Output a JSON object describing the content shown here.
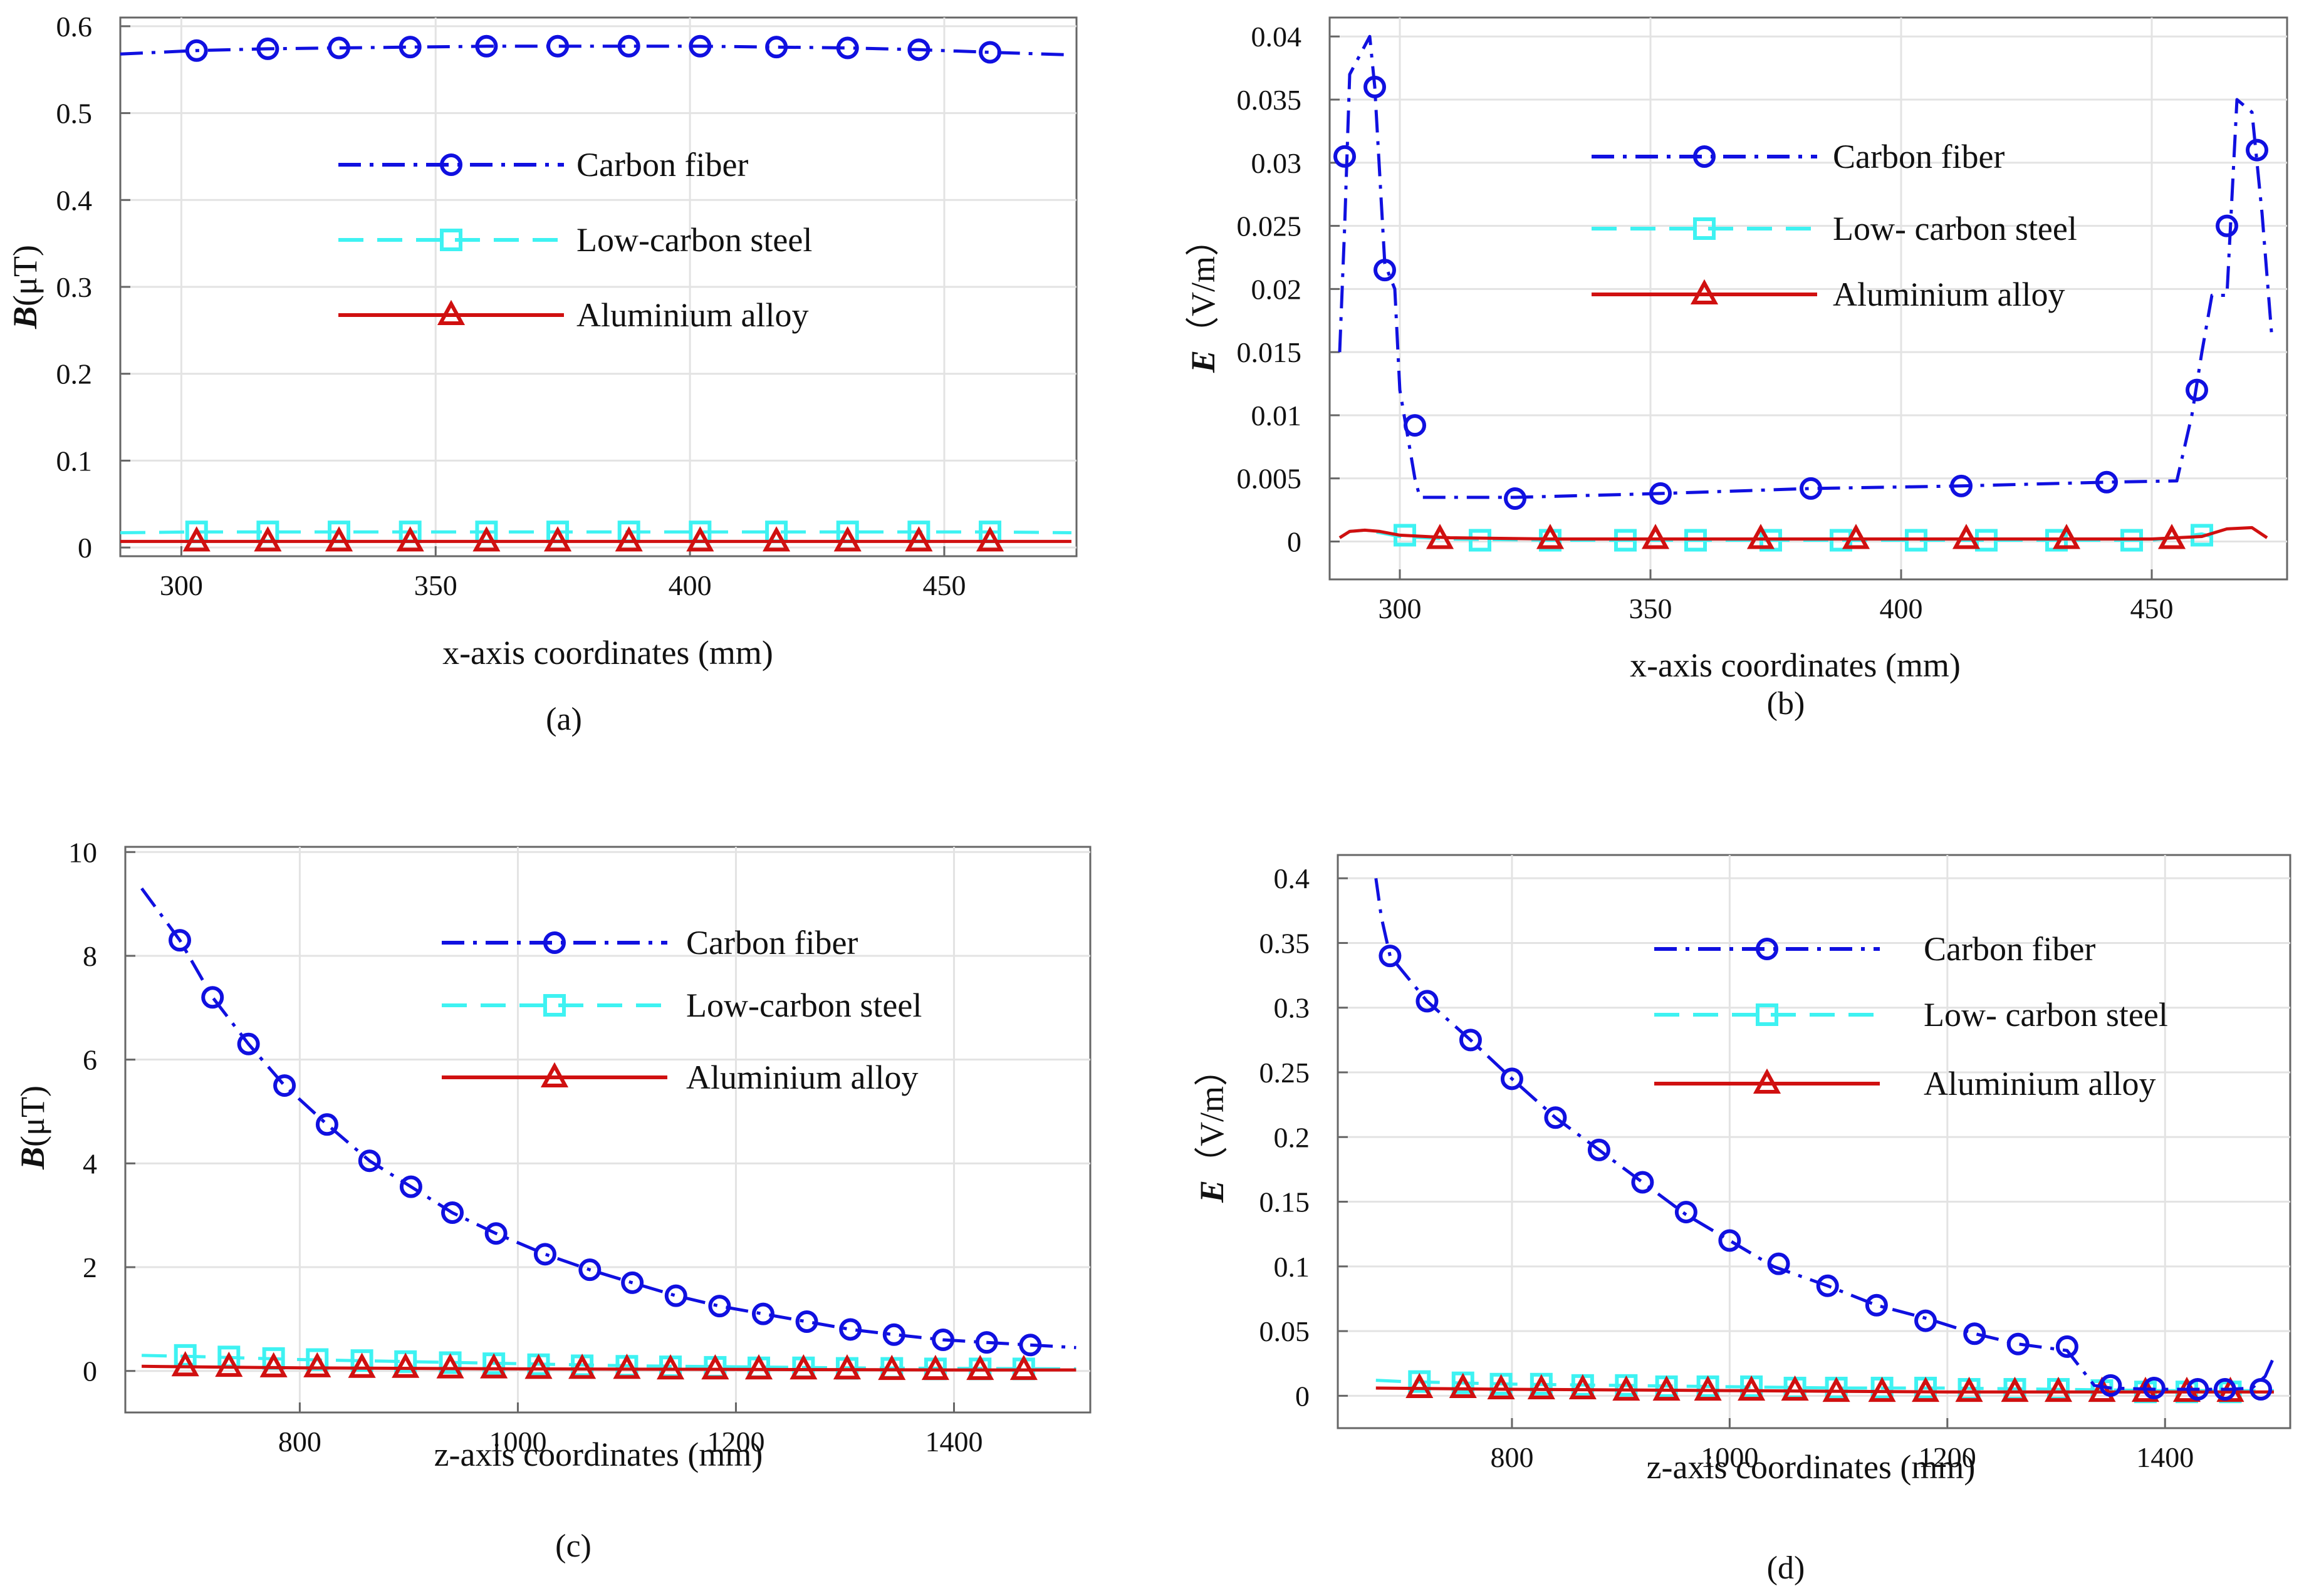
{
  "series_styles": {
    "Carbon fiber": {
      "color": "#1010e0",
      "dash": "36 14 6 14",
      "marker": "circle"
    },
    "Low-carbon steel": {
      "color": "#3ef2f2",
      "dash": "40 22",
      "marker": "square"
    },
    "Aluminium alloy": {
      "color": "#d01010",
      "dash": "",
      "marker": "triangle"
    }
  },
  "chart_data": [
    {
      "id": "a",
      "type": "line",
      "caption": "(a)",
      "xlabel": "x-axis coordinates (mm)",
      "ylabel_main": "B",
      "ylabel_unit": "(μT)",
      "xlim": [
        288,
        476
      ],
      "ylim": [
        -0.01,
        0.61
      ],
      "xticks": [
        300,
        350,
        400,
        450
      ],
      "yticks": [
        0,
        0.1,
        0.2,
        0.3,
        0.4,
        0.5,
        0.6
      ],
      "xtick_labels": [
        "300",
        "350",
        "400",
        "450"
      ],
      "ytick_labels": [
        "0",
        "0.1",
        "0.2",
        "0.3",
        "0.4",
        "0.5",
        "0.6"
      ],
      "legend": [
        "Carbon fiber",
        "Low-carbon steel",
        "Aluminium alloy"
      ],
      "series": [
        {
          "name": "Carbon fiber",
          "x": [
            288,
            303,
            317,
            331,
            345,
            360,
            374,
            388,
            402,
            417,
            431,
            445,
            459,
            475
          ],
          "y": [
            0.568,
            0.572,
            0.574,
            0.575,
            0.576,
            0.577,
            0.577,
            0.577,
            0.577,
            0.576,
            0.575,
            0.573,
            0.57,
            0.567
          ],
          "marker_x": [
            303,
            317,
            331,
            345,
            360,
            374,
            388,
            402,
            417,
            431,
            445,
            459
          ]
        },
        {
          "name": "Low-carbon steel",
          "x": [
            288,
            303,
            317,
            331,
            345,
            360,
            374,
            388,
            402,
            417,
            431,
            445,
            459,
            475
          ],
          "y": [
            0.017,
            0.018,
            0.018,
            0.018,
            0.018,
            0.018,
            0.018,
            0.018,
            0.018,
            0.018,
            0.018,
            0.018,
            0.018,
            0.017
          ],
          "marker_x": [
            303,
            317,
            331,
            345,
            360,
            374,
            388,
            402,
            417,
            431,
            445,
            459
          ]
        },
        {
          "name": "Aluminium alloy",
          "x": [
            288,
            303,
            317,
            331,
            345,
            360,
            374,
            388,
            402,
            417,
            431,
            445,
            459,
            475
          ],
          "y": [
            0.007,
            0.007,
            0.007,
            0.007,
            0.007,
            0.007,
            0.007,
            0.007,
            0.007,
            0.007,
            0.007,
            0.007,
            0.007,
            0.007
          ],
          "marker_x": [
            303,
            317,
            331,
            345,
            360,
            374,
            388,
            402,
            417,
            431,
            445,
            459
          ]
        }
      ]
    },
    {
      "id": "b",
      "type": "line",
      "caption": "(b)",
      "xlabel": "x-axis coordinates (mm)",
      "ylabel_main": "E",
      "ylabel_unit": "（V/m）",
      "xlim": [
        286,
        477
      ],
      "ylim": [
        -0.003,
        0.0415
      ],
      "xticks": [
        300,
        350,
        400,
        450
      ],
      "yticks": [
        0,
        0.005,
        0.01,
        0.015,
        0.02,
        0.025,
        0.03,
        0.035,
        0.04
      ],
      "xtick_labels": [
        "300",
        "350",
        "400",
        "450"
      ],
      "ytick_labels": [
        "0",
        "0.005",
        "0.01",
        "0.015",
        "0.02",
        "0.025",
        "0.03",
        "0.035",
        "0.04"
      ],
      "legend": [
        "Carbon fiber",
        "Low- carbon steel",
        "Aluminium alloy"
      ],
      "series": [
        {
          "name": "Carbon fiber",
          "x": [
            288,
            289,
            290,
            294,
            295,
            297,
            299,
            300,
            303,
            304,
            323,
            352,
            382,
            412,
            441,
            455,
            458,
            460,
            462,
            465,
            467,
            470,
            472,
            474
          ],
          "y": [
            0.015,
            0.025,
            0.037,
            0.04,
            0.036,
            0.022,
            0.02,
            0.012,
            0.005,
            0.0035,
            0.0035,
            0.0038,
            0.0042,
            0.0044,
            0.0047,
            0.0048,
            0.01,
            0.015,
            0.0195,
            0.0195,
            0.035,
            0.034,
            0.026,
            0.016
          ],
          "marker_x": [
            289,
            295,
            297,
            303,
            323,
            352,
            382,
            412,
            441,
            459,
            465,
            471
          ],
          "marker_y": [
            0.0305,
            0.036,
            0.0215,
            0.0092,
            0.0034,
            0.0038,
            0.0042,
            0.0044,
            0.0047,
            0.012,
            0.025,
            0.031
          ]
        },
        {
          "name": "Low- carbon steel",
          "x": [
            288,
            290,
            293,
            296,
            300,
            310,
            330,
            360,
            390,
            420,
            450,
            458,
            460,
            462
          ],
          "y": [
            0.0003,
            0.0008,
            0.0009,
            0.0007,
            0.0004,
            0.0002,
            0.0001,
            0.0001,
            0.0001,
            0.0001,
            0.0001,
            0.0005,
            0.0006,
            0.0004
          ],
          "marker_x": [
            301,
            316,
            330,
            345,
            359,
            374,
            388,
            403,
            417,
            431,
            446,
            460
          ],
          "marker_y": [
            0.0005,
            0.0001,
            0.0001,
            0.0001,
            0.0001,
            0.0001,
            0.0001,
            0.0001,
            0.0001,
            0.0001,
            0.0001,
            0.0005
          ]
        },
        {
          "name": "Aluminium alloy",
          "x": [
            288,
            290,
            293,
            296,
            300,
            310,
            330,
            360,
            390,
            420,
            450,
            460,
            465,
            470,
            473
          ],
          "y": [
            0.0003,
            0.0008,
            0.0009,
            0.0008,
            0.0005,
            0.0003,
            0.0002,
            0.0002,
            0.0002,
            0.0002,
            0.0002,
            0.0004,
            0.001,
            0.0011,
            0.0003
          ],
          "marker_x": [
            308,
            330,
            351,
            372,
            391,
            413,
            433,
            454
          ],
          "marker_y": [
            0.0002,
            0.0002,
            0.0002,
            0.0002,
            0.0002,
            0.0002,
            0.0002,
            0.0002
          ]
        }
      ]
    },
    {
      "id": "c",
      "type": "line",
      "caption": "(c)",
      "xlabel": "z-axis coordinates (mm)",
      "ylabel_main": "B",
      "ylabel_unit": "(μT)",
      "xlim": [
        640,
        1525
      ],
      "ylim": [
        -0.8,
        10.1
      ],
      "xticks": [
        800,
        1000,
        1200,
        1400
      ],
      "yticks": [
        0,
        2,
        4,
        6,
        8,
        10
      ],
      "xtick_labels": [
        "800",
        "1000",
        "1200",
        "1400"
      ],
      "ytick_labels": [
        "0",
        "2",
        "4",
        "6",
        "8",
        "10"
      ],
      "legend": [
        "Carbon fiber",
        "Low-carbon steel",
        "Aluminium alloy"
      ],
      "series": [
        {
          "name": "Carbon fiber",
          "x": [
            655,
            690,
            720,
            753,
            786,
            825,
            864,
            902,
            940,
            980,
            1025,
            1066,
            1105,
            1145,
            1185,
            1225,
            1265,
            1305,
            1345,
            1390,
            1430,
            1470,
            1512
          ],
          "y": [
            9.3,
            8.3,
            7.2,
            6.3,
            5.5,
            4.75,
            4.05,
            3.55,
            3.05,
            2.65,
            2.25,
            1.95,
            1.7,
            1.45,
            1.25,
            1.1,
            0.95,
            0.8,
            0.7,
            0.6,
            0.55,
            0.5,
            0.45
          ],
          "marker_x": [
            690,
            720,
            753,
            786,
            825,
            864,
            902,
            940,
            980,
            1025,
            1066,
            1105,
            1145,
            1185,
            1225,
            1265,
            1305,
            1345,
            1390,
            1430,
            1470
          ]
        },
        {
          "name": "Low-carbon steel",
          "x": [
            655,
            700,
            750,
            800,
            850,
            900,
            1000,
            1100,
            1200,
            1300,
            1400,
            1512
          ],
          "y": [
            0.3,
            0.28,
            0.25,
            0.22,
            0.2,
            0.18,
            0.14,
            0.1,
            0.08,
            0.06,
            0.05,
            0.04
          ],
          "marker_x": [
            695,
            735,
            776,
            816,
            857,
            897,
            938,
            978,
            1019,
            1059,
            1100,
            1140,
            1181,
            1221,
            1262,
            1302,
            1343,
            1383,
            1424,
            1464
          ],
          "marker_y": [
            0.3,
            0.27,
            0.24,
            0.22,
            0.2,
            0.18,
            0.16,
            0.14,
            0.12,
            0.1,
            0.09,
            0.08,
            0.07,
            0.06,
            0.06,
            0.05,
            0.05,
            0.04,
            0.04,
            0.04
          ]
        },
        {
          "name": "Aluminium alloy",
          "x": [
            655,
            800,
            1000,
            1200,
            1400,
            1512
          ],
          "y": [
            0.09,
            0.06,
            0.04,
            0.03,
            0.02,
            0.02
          ],
          "marker_x": [
            695,
            735,
            776,
            816,
            857,
            897,
            938,
            978,
            1019,
            1059,
            1100,
            1140,
            1181,
            1221,
            1262,
            1302,
            1343,
            1383,
            1424,
            1464
          ],
          "marker_y": [
            0.09,
            0.08,
            0.07,
            0.07,
            0.06,
            0.06,
            0.05,
            0.05,
            0.04,
            0.04,
            0.04,
            0.03,
            0.03,
            0.03,
            0.03,
            0.03,
            0.02,
            0.02,
            0.02,
            0.02
          ]
        }
      ]
    },
    {
      "id": "d",
      "type": "line",
      "caption": "(d)",
      "xlabel": "z-axis coordinates (mm)",
      "ylabel_main": "E",
      "ylabel_unit": "（V/m）",
      "xlim": [
        640,
        1515
      ],
      "ylim": [
        -0.025,
        0.418
      ],
      "xticks": [
        800,
        1000,
        1200,
        1400
      ],
      "yticks": [
        0,
        0.05,
        0.1,
        0.15,
        0.2,
        0.25,
        0.3,
        0.35,
        0.4
      ],
      "xtick_labels": [
        "800",
        "1000",
        "1200",
        "1400"
      ],
      "ytick_labels": [
        "0",
        "0.05",
        "0.1",
        "0.15",
        "0.2",
        "0.25",
        "0.3",
        "0.35",
        "0.4"
      ],
      "legend": [
        "Carbon fiber",
        "Low- carbon steel",
        "Aluminium alloy"
      ],
      "series": [
        {
          "name": "Carbon fiber",
          "x": [
            675,
            680,
            688,
            722,
            762,
            800,
            840,
            880,
            920,
            960,
            1000,
            1040,
            1090,
            1135,
            1180,
            1225,
            1265,
            1310,
            1335,
            1350,
            1390,
            1430,
            1460,
            1480,
            1492,
            1500
          ],
          "y": [
            0.4,
            0.37,
            0.34,
            0.305,
            0.275,
            0.245,
            0.215,
            0.19,
            0.165,
            0.14,
            0.12,
            0.1,
            0.085,
            0.07,
            0.06,
            0.048,
            0.04,
            0.035,
            0.008,
            0.006,
            0.005,
            0.005,
            0.005,
            0.006,
            0.015,
            0.03
          ],
          "marker_x": [
            688,
            722,
            762,
            800,
            840,
            880,
            920,
            960,
            1000,
            1045,
            1090,
            1135,
            1180,
            1225,
            1265,
            1310,
            1350,
            1390,
            1430,
            1455,
            1488
          ],
          "marker_y": [
            0.34,
            0.305,
            0.275,
            0.245,
            0.215,
            0.19,
            0.165,
            0.142,
            0.12,
            0.102,
            0.085,
            0.07,
            0.058,
            0.048,
            0.04,
            0.038,
            0.008,
            0.006,
            0.005,
            0.005,
            0.005
          ]
        },
        {
          "name": "Low- carbon steel",
          "x": [
            675,
            700,
            750,
            800,
            900,
            1000,
            1100,
            1200,
            1300,
            1400,
            1500
          ],
          "y": [
            0.012,
            0.011,
            0.01,
            0.009,
            0.008,
            0.007,
            0.006,
            0.006,
            0.005,
            0.004,
            0.004
          ],
          "marker_x": [
            715,
            755,
            790,
            827,
            865,
            905,
            942,
            980,
            1020,
            1060,
            1098,
            1140,
            1180,
            1220,
            1262,
            1302,
            1342,
            1382,
            1420,
            1460
          ],
          "marker_y": [
            0.011,
            0.01,
            0.009,
            0.009,
            0.008,
            0.008,
            0.007,
            0.007,
            0.007,
            0.006,
            0.006,
            0.006,
            0.006,
            0.005,
            0.005,
            0.005,
            0.004,
            0.003,
            0.003,
            0.003
          ]
        },
        {
          "name": "Aluminium alloy",
          "x": [
            675,
            800,
            1000,
            1200,
            1400,
            1500
          ],
          "y": [
            0.006,
            0.005,
            0.004,
            0.003,
            0.003,
            0.003
          ],
          "marker_x": [
            715,
            755,
            790,
            827,
            865,
            905,
            942,
            980,
            1020,
            1060,
            1098,
            1140,
            1180,
            1220,
            1262,
            1302,
            1342,
            1382,
            1420,
            1460
          ],
          "marker_y": [
            0.006,
            0.006,
            0.005,
            0.005,
            0.005,
            0.004,
            0.004,
            0.004,
            0.004,
            0.004,
            0.003,
            0.003,
            0.003,
            0.003,
            0.003,
            0.003,
            0.003,
            0.003,
            0.003,
            0.003
          ]
        }
      ]
    }
  ]
}
